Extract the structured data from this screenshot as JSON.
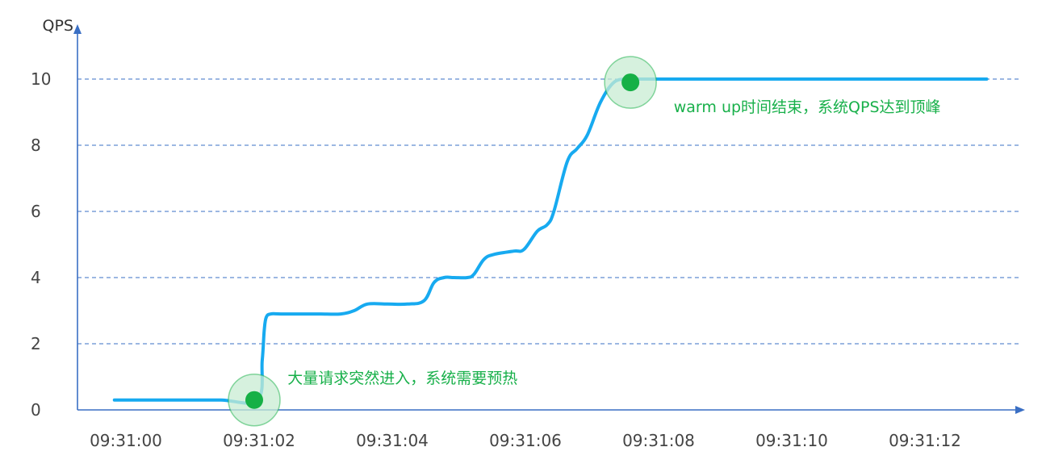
{
  "colors": {
    "axis": "#3a6fc4",
    "grid": "#3a6fc4",
    "line": "#17aaf0",
    "marker": "#16b046",
    "marker_halo": "#c8ecd3",
    "annotation": "#18b04a"
  },
  "chart_data": {
    "type": "line",
    "title": "",
    "xlabel": "",
    "ylabel": "QPS",
    "xlim": [
      -0.55,
      13.1
    ],
    "ylim": [
      0,
      11
    ],
    "x_ticks": [
      0,
      2,
      4,
      6,
      8,
      10,
      12
    ],
    "x_tick_labels": [
      "09:31:00",
      "09:31:02",
      "09:31:04",
      "09:31:06",
      "09:31:08",
      "09:31:10",
      "09:31:12"
    ],
    "y_ticks": [
      0,
      2,
      4,
      6,
      8,
      10
    ],
    "y_tick_labels": [
      "0",
      "2",
      "4",
      "6",
      "8",
      "10"
    ],
    "grid": "horizontal dashed",
    "series": [
      {
        "x": [
          -0.1,
          0.5,
          1.0,
          1.5,
          2.05,
          2.12,
          2.15,
          2.18,
          2.25,
          2.4,
          2.8,
          3.0,
          3.3,
          3.5,
          3.7,
          4.0,
          4.3,
          4.55,
          4.7,
          4.85,
          5.0,
          5.2,
          5.3,
          5.45,
          5.6,
          5.9,
          6.05,
          6.25,
          6.4,
          6.5,
          6.7,
          6.85,
          7.0,
          7.2,
          7.4,
          7.6,
          7.75
        ],
        "y": [
          0.3,
          0.3,
          0.3,
          0.3,
          0.3,
          1.5,
          2.4,
          2.8,
          2.9,
          2.9,
          2.9,
          2.9,
          2.9,
          3.0,
          3.2,
          3.2,
          3.2,
          3.3,
          3.85,
          4.0,
          4.0,
          4.0,
          4.1,
          4.55,
          4.7,
          4.8,
          4.85,
          5.4,
          5.6,
          6.0,
          7.5,
          7.9,
          8.3,
          9.3,
          9.9,
          10.0,
          10.0
        ]
      },
      {
        "x": [
          7.6,
          13.0
        ],
        "y": [
          10.0,
          10.0
        ]
      }
    ],
    "markers": [
      {
        "x": 2.0,
        "y": 0.3
      },
      {
        "x": 7.65,
        "y": 9.9
      }
    ],
    "annotations": [
      {
        "text": "大量请求突然进入，系统需要预热",
        "x": 2.5,
        "y": 0.8
      },
      {
        "text": "warm up时间结束，系统QPS达到顶峰",
        "x": 8.3,
        "y": 9.0
      }
    ]
  }
}
